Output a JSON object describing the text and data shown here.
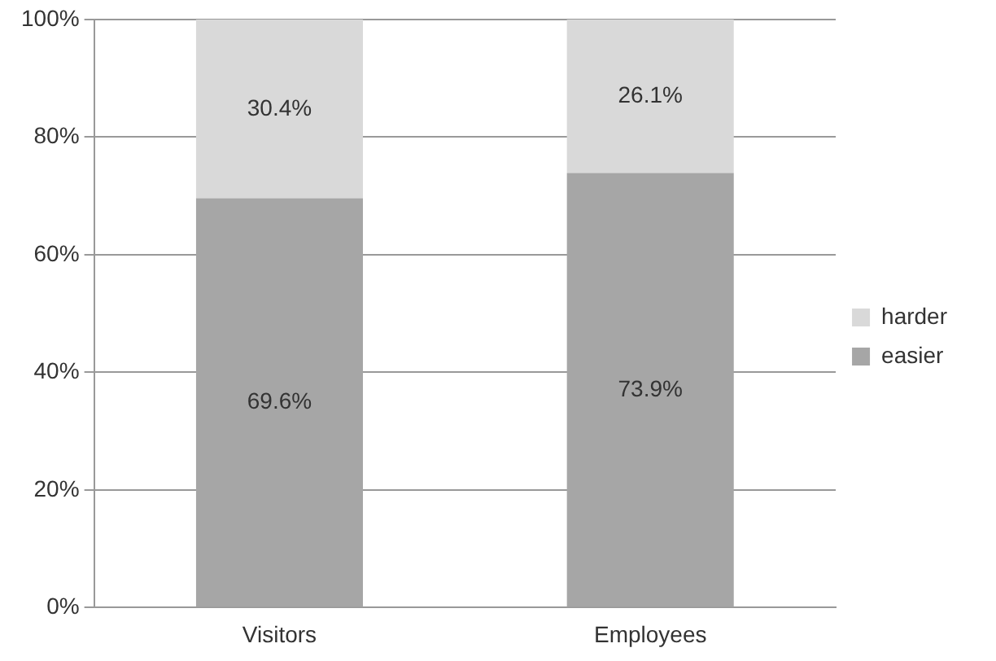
{
  "chart_data": {
    "type": "bar",
    "stacked": true,
    "categories": [
      "Visitors",
      "Employees"
    ],
    "series": [
      {
        "name": "easier",
        "color": "#a6a6a6",
        "values": [
          69.6,
          73.9
        ],
        "value_labels": [
          "69.6%",
          "73.9%"
        ]
      },
      {
        "name": "harder",
        "color": "#d9d9d9",
        "values": [
          30.4,
          26.1
        ],
        "value_labels": [
          "30.4%",
          "26.1%"
        ]
      }
    ],
    "ylim": [
      0,
      100
    ],
    "yticks": [
      {
        "value": 0,
        "label": "0%"
      },
      {
        "value": 20,
        "label": "20%"
      },
      {
        "value": 40,
        "label": "40%"
      },
      {
        "value": 60,
        "label": "60%"
      },
      {
        "value": 80,
        "label": "80%"
      },
      {
        "value": 100,
        "label": "100%"
      }
    ],
    "grid": "y",
    "legend": "right"
  }
}
